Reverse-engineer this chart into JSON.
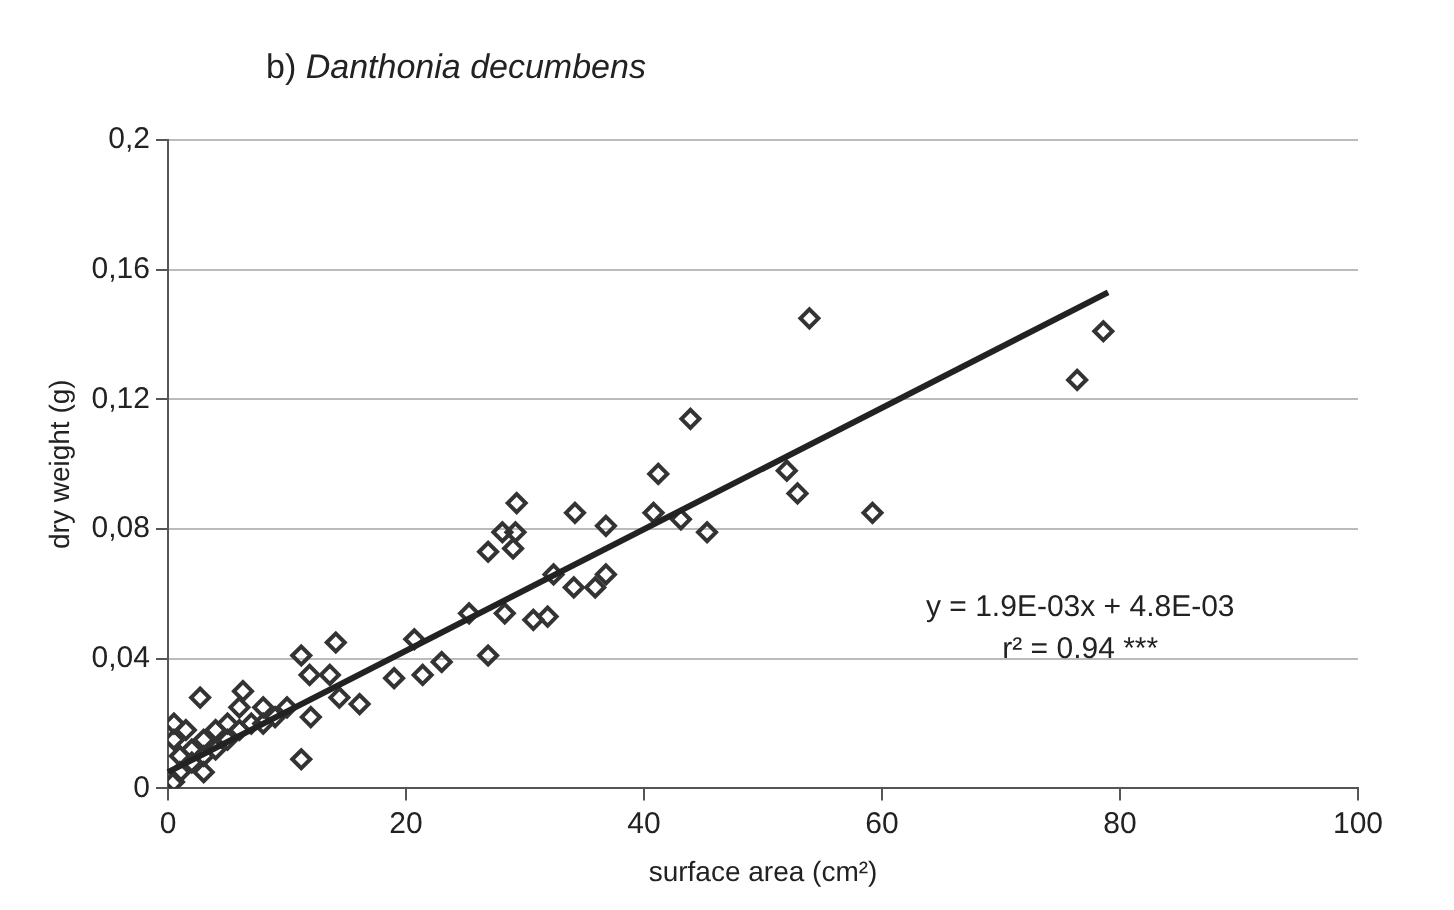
{
  "chart_data": {
    "type": "scatter",
    "title": "b) Danthonia decumbens",
    "xlabel": "surface area (cm²)",
    "ylabel": "dry weight (g)",
    "annotations": [
      "y = 1.9E-03x + 4.8E-03",
      "r² = 0.94 ***"
    ],
    "xlim": [
      0,
      100
    ],
    "xticks": [
      0,
      20,
      40,
      60,
      80,
      100
    ],
    "ylim": [
      0,
      0.2
    ],
    "yticks": [
      0,
      {
        "value": 0.04,
        "label": "0,04"
      },
      {
        "value": 0.08,
        "label": "0,08"
      },
      {
        "value": 0.12,
        "label": "0,12"
      },
      {
        "value": 0.16,
        "label": "0,16"
      },
      {
        "value": 0.2,
        "label": "0,2"
      }
    ],
    "grid": "y",
    "legend": false,
    "marker": "diamond",
    "series": [
      {
        "color": "#333333",
        "x": [
          43.9,
          41.2,
          29.3,
          34.2,
          28.1,
          29.2,
          26.9,
          29.0,
          45.3,
          36.8,
          40.8,
          43.1,
          34.1,
          35.9,
          36.8,
          30.7,
          31.9,
          26.9,
          14.1,
          11.2,
          11.9,
          13.6,
          14.4,
          16.1,
          19.0,
          20.7,
          21.4,
          23.0,
          11.2,
          12.0,
          2.7,
          6.3,
          25.3,
          28.3,
          32.4,
          53.9,
          78.6,
          76.4,
          59.2,
          52.0,
          52.9,
          0.5,
          1,
          1,
          0.5,
          0.5,
          2,
          2,
          3,
          3,
          4,
          4,
          5,
          5,
          6,
          7,
          8,
          8,
          9,
          10,
          1.5,
          3,
          6
        ],
        "values": [
          0.114,
          0.097,
          0.088,
          0.085,
          0.079,
          0.079,
          0.073,
          0.074,
          0.079,
          0.081,
          0.085,
          0.083,
          0.062,
          0.062,
          0.066,
          0.052,
          0.053,
          0.041,
          0.045,
          0.041,
          0.035,
          0.035,
          0.028,
          0.026,
          0.034,
          0.046,
          0.035,
          0.039,
          0.009,
          0.022,
          0.028,
          0.03,
          0.054,
          0.054,
          0.066,
          0.145,
          0.141,
          0.126,
          0.085,
          0.098,
          0.091,
          0.002,
          0.005,
          0.01,
          0.015,
          0.02,
          0.008,
          0.012,
          0.01,
          0.015,
          0.012,
          0.018,
          0.015,
          0.02,
          0.018,
          0.02,
          0.02,
          0.025,
          0.022,
          0.025,
          0.018,
          0.005,
          0.025
        ]
      },
      {
        "type": "line",
        "color": "#222222",
        "marker": "none",
        "line_style": "solid",
        "x": [
          0,
          79
        ],
        "values": [
          0.005,
          0.153
        ]
      }
    ]
  }
}
